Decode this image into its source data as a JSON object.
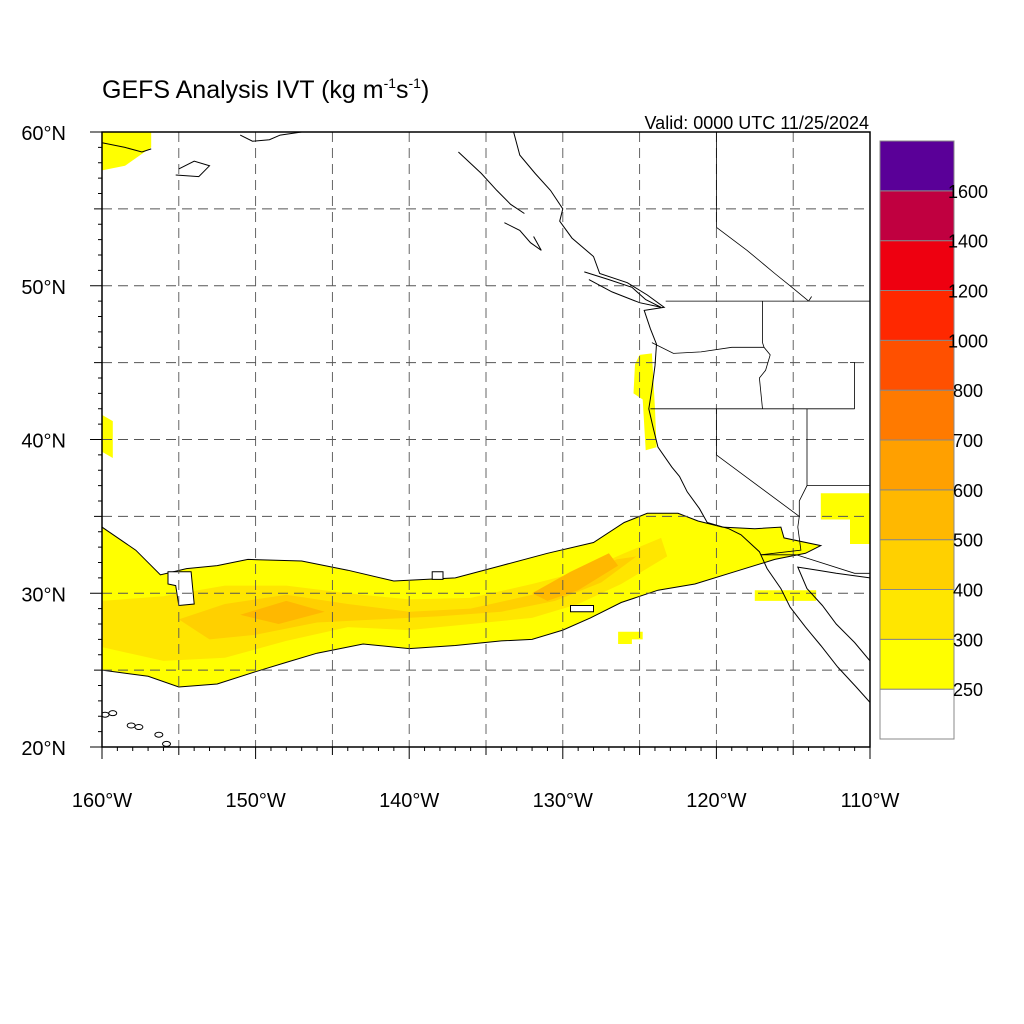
{
  "title": "GEFS Analysis IVT",
  "title_units": {
    "open": "(kg m",
    "exp1": "-1",
    "mid": "s",
    "exp2": "-1",
    "close": ")"
  },
  "valid_time": "Valid: 0000 UTC 11/25/2024",
  "map": {
    "lon_range": [
      -160,
      -110
    ],
    "lat_range": [
      20,
      60
    ],
    "gridlines": "dashed, every 5 degrees",
    "lon_ticks": [
      {
        "value": -160,
        "label": "160°W"
      },
      {
        "value": -150,
        "label": "150°W"
      },
      {
        "value": -140,
        "label": "140°W"
      },
      {
        "value": -130,
        "label": "130°W"
      },
      {
        "value": -120,
        "label": "120°W"
      },
      {
        "value": -110,
        "label": "110°W"
      }
    ],
    "lat_ticks": [
      {
        "value": 20,
        "label": "20°N"
      },
      {
        "value": 30,
        "label": "30°N"
      },
      {
        "value": 40,
        "label": "40°N"
      },
      {
        "value": 50,
        "label": "50°N"
      },
      {
        "value": 60,
        "label": "60°N"
      }
    ]
  },
  "colorbar": {
    "levels": [
      {
        "label": "250",
        "color": "#ffff00"
      },
      {
        "label": "300",
        "color": "#ffe600"
      },
      {
        "label": "400",
        "color": "#ffd000"
      },
      {
        "label": "500",
        "color": "#ffb800"
      },
      {
        "label": "600",
        "color": "#ffa000"
      },
      {
        "label": "700",
        "color": "#ff7a00"
      },
      {
        "label": "800",
        "color": "#ff5000"
      },
      {
        "label": "1000",
        "color": "#ff2800"
      },
      {
        "label": "1200",
        "color": "#ee0010"
      },
      {
        "label": "1400",
        "color": "#c00040"
      },
      {
        "label": "1600",
        "color": "#880060"
      }
    ],
    "top_color": "#5a0098",
    "bottom_color": "#ffffff"
  },
  "ivt_field": {
    "units": "kg m-1 s-1",
    "features": [
      {
        "name": "main atmospheric river",
        "polygon": [
          [
            -160,
            34.3
          ],
          [
            -157.8,
            32.8
          ],
          [
            -156.2,
            31.2
          ],
          [
            -154.5,
            31.6
          ],
          [
            -152.5,
            31.8
          ],
          [
            -150.5,
            32.2
          ],
          [
            -147,
            32.1
          ],
          [
            -144,
            31.5
          ],
          [
            -141,
            30.8
          ],
          [
            -137,
            31.0
          ],
          [
            -134,
            31.8
          ],
          [
            -131,
            32.6
          ],
          [
            -128,
            33.3
          ],
          [
            -126,
            34.6
          ],
          [
            -124.5,
            35.2
          ],
          [
            -122.5,
            35.2
          ],
          [
            -121.2,
            34.7
          ],
          [
            -119.6,
            34.3
          ],
          [
            -117.5,
            34.2
          ],
          [
            -115.8,
            34.3
          ],
          [
            -115.6,
            33.6
          ],
          [
            -113.2,
            33.1
          ],
          [
            -114.2,
            32.6
          ],
          [
            -116.2,
            32.2
          ],
          [
            -118.8,
            31.4
          ],
          [
            -121.4,
            30.6
          ],
          [
            -123.8,
            30.2
          ],
          [
            -126.2,
            29.4
          ],
          [
            -128.2,
            28.4
          ],
          [
            -130,
            27.6
          ],
          [
            -132,
            27
          ],
          [
            -134,
            26.9
          ],
          [
            -137,
            26.6
          ],
          [
            -140,
            26.4
          ],
          [
            -143,
            26.7
          ],
          [
            -146,
            26.1
          ],
          [
            -148,
            25.5
          ],
          [
            -150,
            24.9
          ],
          [
            -152.5,
            24.1
          ],
          [
            -155,
            23.9
          ],
          [
            -157,
            24.6
          ],
          [
            -160,
            25.0
          ]
        ],
        "level": "250"
      },
      {
        "name": "ar core",
        "polygon": [
          [
            -160,
            29.5
          ],
          [
            -156,
            29.8
          ],
          [
            -152,
            30.5
          ],
          [
            -148,
            30.5
          ],
          [
            -144,
            30
          ],
          [
            -140,
            29.6
          ],
          [
            -136,
            29.7
          ],
          [
            -132,
            30.6
          ],
          [
            -128.5,
            31.5
          ],
          [
            -126,
            32.6
          ],
          [
            -123.6,
            33.6
          ],
          [
            -123.2,
            32.4
          ],
          [
            -126.2,
            30.6
          ],
          [
            -129,
            29.3
          ],
          [
            -132,
            28.4
          ],
          [
            -136,
            28
          ],
          [
            -140,
            27.6
          ],
          [
            -144,
            27.8
          ],
          [
            -148,
            26.9
          ],
          [
            -152,
            25.8
          ],
          [
            -156,
            25.6
          ],
          [
            -160,
            26.5
          ]
        ],
        "level": "300"
      },
      {
        "name": "ar inner core",
        "polygon": [
          [
            -155,
            28.3
          ],
          [
            -152,
            29.3
          ],
          [
            -148,
            29.9
          ],
          [
            -144,
            29.3
          ],
          [
            -140,
            28.8
          ],
          [
            -136,
            29.0
          ],
          [
            -132,
            29.9
          ],
          [
            -129.2,
            31.0
          ],
          [
            -126.5,
            32.2
          ],
          [
            -125.2,
            32.4
          ],
          [
            -127.5,
            30.7
          ],
          [
            -130.5,
            29.5
          ],
          [
            -134,
            28.8
          ],
          [
            -138,
            28.5
          ],
          [
            -142,
            28.3
          ],
          [
            -146,
            28.1
          ],
          [
            -150,
            27.3
          ],
          [
            -153,
            27
          ]
        ],
        "level": "400"
      },
      {
        "name": "ar peak",
        "polygon": [
          [
            -151,
            28.6
          ],
          [
            -148,
            29.5
          ],
          [
            -145.5,
            28.8
          ],
          [
            -148.5,
            28.0
          ]
        ],
        "level": "500"
      },
      {
        "name": "ar peak east",
        "polygon": [
          [
            -132,
            30
          ],
          [
            -129.5,
            31.4
          ],
          [
            -127,
            32.6
          ],
          [
            -126.4,
            31.8
          ],
          [
            -129,
            30.2
          ],
          [
            -131,
            29.5
          ]
        ],
        "level": "500"
      },
      {
        "name": "oregon coast",
        "polygon": [
          [
            -125.0,
            45.5
          ],
          [
            -124.2,
            45.6
          ],
          [
            -124.0,
            42
          ],
          [
            -123.9,
            39.5
          ],
          [
            -124.6,
            39.3
          ],
          [
            -124.8,
            42.6
          ],
          [
            -125.4,
            43
          ],
          [
            -125.3,
            44.9
          ]
        ],
        "level": "250"
      },
      {
        "name": "alaska edge",
        "polygon": [
          [
            -160,
            60
          ],
          [
            -156.8,
            60
          ],
          [
            -156.8,
            59
          ],
          [
            -158.5,
            57.8
          ],
          [
            -160,
            57.5
          ]
        ],
        "level": "250"
      },
      {
        "name": "west edge blob",
        "polygon": [
          [
            -160,
            41.6
          ],
          [
            -159.3,
            41.2
          ],
          [
            -159.3,
            38.8
          ],
          [
            -160,
            39.2
          ]
        ],
        "level": "250"
      },
      {
        "name": "baja patch",
        "polygon": [
          [
            -117.5,
            30.2
          ],
          [
            -113.5,
            30.2
          ],
          [
            -113.5,
            29.5
          ],
          [
            -117.5,
            29.5
          ]
        ],
        "level": "250"
      },
      {
        "name": "interior patch",
        "polygon": [
          [
            -113.2,
            36.5
          ],
          [
            -110,
            36.5
          ],
          [
            -110,
            33.2
          ],
          [
            -111.3,
            33.2
          ],
          [
            -111.3,
            34.8
          ],
          [
            -113.2,
            34.8
          ]
        ],
        "level": "250"
      },
      {
        "name": "south patch",
        "polygon": [
          [
            -126.4,
            27.5
          ],
          [
            -124.8,
            27.5
          ],
          [
            -124.8,
            27.0
          ],
          [
            -125.5,
            27.0
          ],
          [
            -125.5,
            26.7
          ],
          [
            -126.4,
            26.7
          ]
        ],
        "level": "250"
      }
    ],
    "holes": [
      {
        "polygon": [
          [
            -155.7,
            31.4
          ],
          [
            -154.2,
            31.4
          ],
          [
            -154.0,
            29.3
          ],
          [
            -155.0,
            29.2
          ],
          [
            -155.2,
            30.5
          ],
          [
            -155.7,
            30.6
          ]
        ]
      },
      {
        "polygon": [
          [
            -129.5,
            29.2
          ],
          [
            -128.0,
            29.2
          ],
          [
            -128.0,
            28.8
          ],
          [
            -129.5,
            28.8
          ]
        ]
      },
      {
        "polygon": [
          [
            -138.5,
            31.4
          ],
          [
            -137.8,
            31.4
          ],
          [
            -137.8,
            30.9
          ],
          [
            -138.5,
            30.9
          ]
        ]
      }
    ]
  },
  "coastlines": {
    "color": "#000000",
    "lines": [
      [
        [
          -133.2,
          60
        ],
        [
          -132.8,
          58.5
        ],
        [
          -131.8,
          57.3
        ],
        [
          -130.8,
          56.2
        ],
        [
          -130,
          55
        ],
        [
          -130.2,
          54.2
        ],
        [
          -129.4,
          53.1
        ],
        [
          -128,
          51.9
        ],
        [
          -127.6,
          50.8
        ],
        [
          -125.8,
          50.2
        ],
        [
          -124.5,
          49.4
        ],
        [
          -123.4,
          48.6
        ],
        [
          -124.7,
          48.4
        ],
        [
          -124.3,
          47.2
        ],
        [
          -123.9,
          46.2
        ],
        [
          -124,
          44.8
        ],
        [
          -124.2,
          43.3
        ],
        [
          -124.4,
          42
        ],
        [
          -124.1,
          40.7
        ],
        [
          -123.8,
          39.5
        ],
        [
          -122.9,
          38.2
        ],
        [
          -122.4,
          37.6
        ],
        [
          -121.9,
          36.6
        ],
        [
          -121.1,
          35.5
        ],
        [
          -120.6,
          34.6
        ],
        [
          -119.2,
          34.2
        ],
        [
          -118.4,
          33.8
        ],
        [
          -117.2,
          32.7
        ],
        [
          -116.7,
          31.6
        ],
        [
          -115.8,
          30.3
        ],
        [
          -115.2,
          29.1
        ],
        [
          -114.2,
          27.8
        ],
        [
          -113.2,
          26.6
        ],
        [
          -112.1,
          25.2
        ],
        [
          -110.9,
          23.9
        ],
        [
          -110,
          22.9
        ]
      ],
      [
        [
          -110,
          31.0
        ],
        [
          -112.2,
          31.3
        ],
        [
          -113.4,
          31.5
        ],
        [
          -114.7,
          31.7
        ],
        [
          -114.1,
          30.3
        ],
        [
          -113.1,
          29.2
        ],
        [
          -112.2,
          28.0
        ],
        [
          -111.0,
          26.8
        ],
        [
          -110,
          25.6
        ]
      ],
      [
        [
          -136.8,
          58.7
        ],
        [
          -135.3,
          57.3
        ],
        [
          -134.3,
          56.2
        ],
        [
          -133.4,
          55.3
        ],
        [
          -132.5,
          54.7
        ]
      ],
      [
        [
          -133.8,
          54.1
        ],
        [
          -132.8,
          53.6
        ],
        [
          -132.1,
          52.8
        ],
        [
          -131.4,
          52.3
        ],
        [
          -131.9,
          53.2
        ]
      ],
      [
        [
          -128.6,
          50.9
        ],
        [
          -127,
          50.4
        ],
        [
          -125.5,
          49.9
        ],
        [
          -124.6,
          49.1
        ],
        [
          -123.6,
          48.6
        ],
        [
          -125,
          48.9
        ],
        [
          -126.8,
          49.6
        ],
        [
          -128.3,
          50.4
        ]
      ],
      [
        [
          -160,
          59.3
        ],
        [
          -158.5,
          59.0
        ],
        [
          -157.4,
          58.7
        ],
        [
          -156.8,
          58.9
        ]
      ],
      [
        [
          -155.2,
          57.2
        ],
        [
          -153.7,
          57.1
        ],
        [
          -153.0,
          57.8
        ],
        [
          -154.0,
          58.1
        ],
        [
          -155.0,
          57.6
        ]
      ],
      [
        [
          -151.0,
          59.8
        ],
        [
          -150.2,
          59.4
        ],
        [
          -149.1,
          59.5
        ],
        [
          -148.4,
          59.8
        ],
        [
          -147.0,
          60
        ]
      ]
    ]
  },
  "borders": {
    "color": "#000000",
    "lines": [
      [
        [
          -123.3,
          49
        ],
        [
          -110,
          49
        ]
      ],
      [
        [
          -117,
          49
        ],
        [
          -117,
          46.3
        ],
        [
          -116.9,
          46
        ],
        [
          -116.5,
          45.5
        ],
        [
          -116.8,
          44.5
        ],
        [
          -117.2,
          44
        ],
        [
          -117,
          42
        ]
      ],
      [
        [
          -124.2,
          46.3
        ],
        [
          -122.8,
          45.6
        ],
        [
          -121,
          45.7
        ],
        [
          -119,
          46
        ],
        [
          -116.9,
          46
        ]
      ],
      [
        [
          -124.3,
          42
        ],
        [
          -111,
          42
        ]
      ],
      [
        [
          -120,
          42
        ],
        [
          -120,
          39
        ],
        [
          -114.6,
          35
        ]
      ],
      [
        [
          -114.1,
          42
        ],
        [
          -114.1,
          37
        ],
        [
          -114.6,
          36
        ],
        [
          -114.6,
          35
        ],
        [
          -114.7,
          34.3
        ],
        [
          -114.5,
          32.8
        ],
        [
          -117.1,
          32.5
        ]
      ],
      [
        [
          -111,
          42
        ],
        [
          -111,
          45
        ],
        [
          -111.3,
          45
        ]
      ],
      [
        [
          -114.1,
          37
        ],
        [
          -110,
          37
        ]
      ],
      [
        [
          -117.1,
          32.5
        ],
        [
          -114.8,
          32.5
        ],
        [
          -111,
          31.3
        ],
        [
          -110,
          31.3
        ]
      ],
      [
        [
          -120,
          60
        ],
        [
          -120,
          53.8
        ],
        [
          -118,
          52.3
        ],
        [
          -116.2,
          50.8
        ],
        [
          -115.2,
          50
        ],
        [
          -114,
          49
        ]
      ],
      [
        [
          -114,
          49
        ],
        [
          -113.8,
          49.3
        ]
      ]
    ]
  },
  "islands": [
    {
      "name": "hawaii",
      "points": [
        [
          -159.8,
          22.1
        ],
        [
          -159.3,
          22.2
        ],
        [
          -158.1,
          21.4
        ],
        [
          -157.6,
          21.3
        ],
        [
          -156.3,
          20.8
        ],
        [
          -155.8,
          20.2
        ],
        [
          -155.0,
          19.7
        ]
      ]
    }
  ]
}
